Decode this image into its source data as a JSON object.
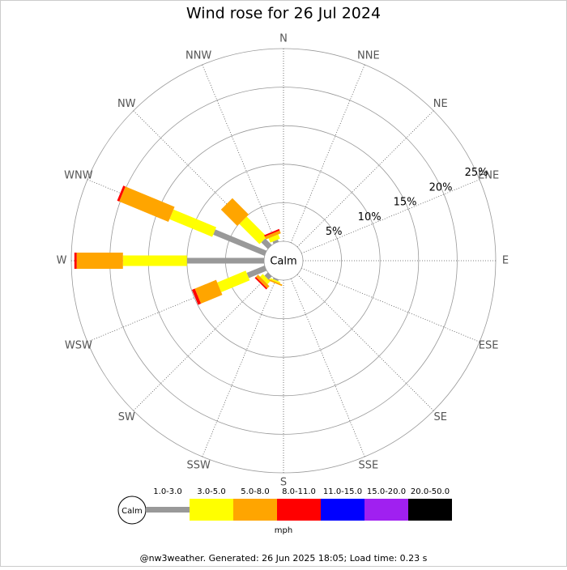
{
  "chart_data": {
    "type": "wind-rose",
    "title": "Wind rose for 26 Jul 2024",
    "categories": [
      "N",
      "NNE",
      "NE",
      "ENE",
      "E",
      "ESE",
      "SE",
      "SSE",
      "S",
      "SSW",
      "SW",
      "WSW",
      "W",
      "WNW",
      "NW",
      "NNW"
    ],
    "calm_label": "Calm",
    "rlim": [
      0,
      25
    ],
    "rticks": [
      {
        "value": 5,
        "label": "5%"
      },
      {
        "value": 10,
        "label": "10%"
      },
      {
        "value": 15,
        "label": "15%"
      },
      {
        "value": 20,
        "label": "20%"
      },
      {
        "value": 25,
        "label": "25%"
      }
    ],
    "unit": "mph",
    "series": [
      {
        "name": "1.0-3.0",
        "color": "#999999",
        "values": [
          0,
          0,
          0,
          0,
          0,
          0,
          0,
          0,
          0,
          0.2,
          0.6,
          2.5,
          10,
          7.2,
          1.2,
          0.3
        ]
      },
      {
        "name": "3.0-5.0",
        "color": "#ffff00",
        "values": [
          0,
          0,
          0,
          0,
          0,
          0,
          0,
          0,
          0,
          0.2,
          0.5,
          4,
          8.3,
          6,
          3.7,
          0.6
        ]
      },
      {
        "name": "5.0-8.0",
        "color": "#ffa500",
        "values": [
          0,
          0,
          0,
          0,
          0,
          0,
          0,
          0,
          0,
          0.2,
          0.4,
          3,
          6,
          6.9,
          3,
          0.4
        ]
      },
      {
        "name": "8.0-11.0",
        "color": "#ff0000",
        "values": [
          0,
          0,
          0,
          0,
          0,
          0,
          0,
          0,
          0,
          0,
          0.2,
          0.4,
          0.3,
          0.3,
          0,
          0.2
        ]
      },
      {
        "name": "11.0-15.0",
        "color": "#0000ff",
        "values": [
          0,
          0,
          0,
          0,
          0,
          0,
          0,
          0,
          0,
          0,
          0,
          0,
          0,
          0,
          0,
          0
        ]
      },
      {
        "name": "15.0-20.0",
        "color": "#a020f0",
        "values": [
          0,
          0,
          0,
          0,
          0,
          0,
          0,
          0,
          0,
          0,
          0,
          0,
          0,
          0,
          0,
          0
        ]
      },
      {
        "name": "20.0-50.0",
        "color": "#000000",
        "values": [
          0,
          0,
          0,
          0,
          0,
          0,
          0,
          0,
          0,
          0,
          0,
          0,
          0,
          0,
          0,
          0
        ]
      }
    ],
    "footer": "@nw3weather. Generated: 26 Jun 2025 18:05; Load time: 0.23 s"
  }
}
